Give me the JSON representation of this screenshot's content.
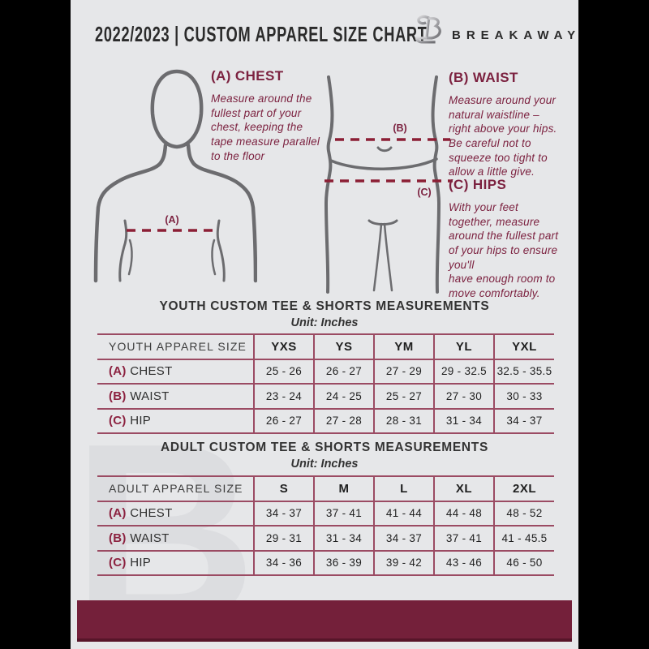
{
  "header": {
    "title": "2022/2023  |  CUSTOM APPAREL SIZE CHART",
    "brand": "BREAKAWAY",
    "logo_icon": "breakaway-metallic-b"
  },
  "colors": {
    "maroon_text": "#7c2240",
    "dash_red": "#8c1f35",
    "table_border": "#9b4b63",
    "footer_bar": "#74203a",
    "figure_gray": "#6c6c6f",
    "page_bg": "#e6e7e9",
    "side_bars": "#000000"
  },
  "watermark_letter": "B",
  "measurements": {
    "chest": {
      "heading": "(A) CHEST",
      "marker": "(A)",
      "body": "Measure around the\nfullest part of your\nchest, keeping the\ntape measure parallel\nto the floor"
    },
    "waist": {
      "heading": "(B) WAIST",
      "marker": "(B)",
      "body": "Measure around your\nnatural waistline –\nright above your hips.\nBe careful not to\nsqueeze too tight to\nallow a little give."
    },
    "hips": {
      "heading": "(C) HIPS",
      "marker": "(C)",
      "body": "With your feet\ntogether, measure\naround the fullest part\nof your hips to ensure\nyou'll\nhave enough room to\nmove comfortably."
    }
  },
  "youth": {
    "title": "YOUTH CUSTOM TEE & SHORTS MEASUREMENTS",
    "unit": "Unit: Inches",
    "table": {
      "header": [
        "YOUTH APPAREL SIZE",
        "YXS",
        "YS",
        "YM",
        "YL",
        "YXL"
      ],
      "rows": [
        {
          "prefix": "(A)",
          "label": "CHEST",
          "values": [
            "25 - 26",
            "26 - 27",
            "27 - 29",
            "29 - 32.5",
            "32.5 - 35.5"
          ]
        },
        {
          "prefix": "(B)",
          "label": "WAIST",
          "values": [
            "23 - 24",
            "24 - 25",
            "25 - 27",
            "27 - 30",
            "30 - 33"
          ]
        },
        {
          "prefix": "(C)",
          "label": "HIP",
          "values": [
            "26 - 27",
            "27 - 28",
            "28 - 31",
            "31 - 34",
            "34 - 37"
          ]
        }
      ]
    }
  },
  "adult": {
    "title": "ADULT CUSTOM TEE & SHORTS MEASUREMENTS",
    "unit": "Unit: Inches",
    "table": {
      "header": [
        "ADULT APPAREL SIZE",
        "S",
        "M",
        "L",
        "XL",
        "2XL"
      ],
      "rows": [
        {
          "prefix": "(A)",
          "label": "CHEST",
          "values": [
            "34 - 37",
            "37 - 41",
            "41 - 44",
            "44 - 48",
            "48 - 52"
          ]
        },
        {
          "prefix": "(B)",
          "label": "WAIST",
          "values": [
            "29 - 31",
            "31 - 34",
            "34 - 37",
            "37 - 41",
            "41 - 45.5"
          ]
        },
        {
          "prefix": "(C)",
          "label": "HIP",
          "values": [
            "34 - 36",
            "36 - 39",
            "39 - 42",
            "43 - 46",
            "46 - 50"
          ]
        }
      ]
    }
  }
}
